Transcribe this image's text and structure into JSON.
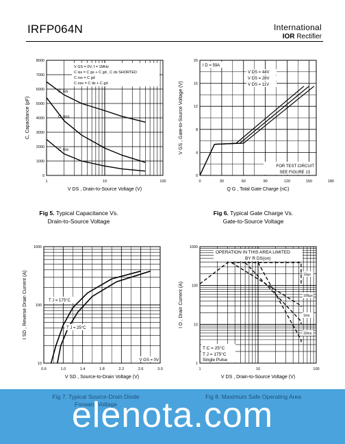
{
  "header": {
    "title": "IRFP064N",
    "brand_line1": "International",
    "brand_logo": "IOR",
    "brand_line2": "Rectifier"
  },
  "figures": [
    {
      "label": "Fig 5.",
      "caption_line1": "Typical Capacitance Vs.",
      "caption_line2": "Drain-to-Source Voltage"
    },
    {
      "label": "Fig 6.",
      "caption_line1": "Typical Gate Charge Vs.",
      "caption_line2": "Gate-to-Source Voltage"
    },
    {
      "label": "Fig 7.",
      "caption_line1": "Typical Source-Drain Diode",
      "caption_line2": "Forward Voltage"
    },
    {
      "label": "Fig 8.",
      "caption_line1": "Maximum Safe Operating Area",
      "caption_line2": ""
    }
  ],
  "chart_data": [
    {
      "type": "line",
      "xlabel": "V DS , Drain-to-Source Voltage (V)",
      "ylabel": "C, Capacitance (pF)",
      "x_scale": "log",
      "xlim": [
        1,
        100
      ],
      "ylim": [
        0,
        8000
      ],
      "x_ticks": [
        "1",
        "10",
        "100"
      ],
      "y_ticks": [
        "0",
        "1000",
        "2000",
        "3000",
        "4000",
        "5000",
        "6000",
        "7000",
        "8000"
      ],
      "annotations": [
        "V GS = 0V,       f = 1MHz",
        "C iss = C gs + C gd ,  C ds SHORTED",
        "C rss = C gd",
        "C oss = C ds + C gd"
      ],
      "series": [
        {
          "name": "C iss",
          "x": [
            1,
            2,
            4,
            10,
            20,
            50
          ],
          "y": [
            6500,
            5600,
            5000,
            4500,
            4100,
            3700
          ]
        },
        {
          "name": "C oss",
          "x": [
            1,
            2,
            4,
            10,
            20,
            50
          ],
          "y": [
            5400,
            3800,
            2800,
            1900,
            1400,
            900
          ]
        },
        {
          "name": "C rss",
          "x": [
            1,
            2,
            4,
            10,
            20,
            50
          ],
          "y": [
            2500,
            1500,
            1000,
            650,
            450,
            300
          ]
        }
      ]
    },
    {
      "type": "line",
      "xlabel": "Q G , Total Gate Charge (nC)",
      "ylabel": "V GS , Gate-to-Source Voltage (V)",
      "xlim": [
        0,
        160
      ],
      "ylim": [
        0,
        20
      ],
      "x_ticks": [
        "0",
        "30",
        "60",
        "90",
        "120",
        "150",
        "180"
      ],
      "x_tick_values": [
        0,
        30,
        60,
        90,
        120,
        150,
        180
      ],
      "y_ticks": [
        "0",
        "4",
        "8",
        "12",
        "16",
        "20"
      ],
      "annotations": [
        "I D = 59A",
        "FOR TEST CIRCUIT",
        "SEE FIGURE 13"
      ],
      "series": [
        {
          "name": "V DS = 44V",
          "x": [
            0,
            20,
            60,
            157
          ],
          "y": [
            0,
            5.4,
            5.6,
            15.5
          ]
        },
        {
          "name": "V DS = 28V",
          "x": [
            0,
            20,
            55,
            150
          ],
          "y": [
            0,
            5.4,
            5.6,
            15.5
          ]
        },
        {
          "name": "V DS = 11V",
          "x": [
            0,
            20,
            50,
            143
          ],
          "y": [
            0,
            5.4,
            5.6,
            15.5
          ]
        }
      ]
    },
    {
      "type": "line",
      "xlabel": "V SD , Source-to-Drain Voltage (V)",
      "ylabel": "I SD , Reverse Drain Current (A)",
      "y_scale": "log",
      "xlim": [
        0.6,
        3.0
      ],
      "ylim": [
        10,
        1000
      ],
      "x_ticks": [
        "0.6",
        "1.0",
        "1.4",
        "1.8",
        "2.2",
        "2.6",
        "3.0"
      ],
      "y_ticks": [
        "10",
        "100",
        "1000"
      ],
      "annotations": [
        "V GS = 0V"
      ],
      "series": [
        {
          "name": "T J = 175°C",
          "x": [
            0.75,
            0.85,
            1.0,
            1.2,
            1.5,
            2.0,
            2.6
          ],
          "y": [
            10,
            20,
            45,
            90,
            160,
            280,
            380
          ]
        },
        {
          "name": "T J = 25°C",
          "x": [
            0.88,
            0.95,
            1.1,
            1.3,
            1.6,
            2.1,
            2.8
          ],
          "y": [
            10,
            20,
            40,
            75,
            140,
            250,
            380
          ]
        }
      ]
    },
    {
      "type": "line",
      "xlabel": "V DS , Drain-to-Source Voltage (V)",
      "ylabel": "I D , Drain Current (A)",
      "x_scale": "log",
      "y_scale": "log",
      "xlim": [
        1,
        100
      ],
      "ylim": [
        1,
        1000
      ],
      "x_ticks": [
        "1",
        "10",
        "100"
      ],
      "y_ticks": [
        "1",
        "10",
        "100",
        "1000"
      ],
      "annotations": [
        "OPERATION IN THIS AREA LIMITED",
        "BY R DS(on)",
        "T C = 25°C",
        "T J = 175°C",
        "Single Pulse"
      ],
      "series": [
        {
          "name": "10µs",
          "x": [
            1,
            3,
            55,
            55
          ],
          "y": [
            110,
            390,
            390,
            100
          ]
        },
        {
          "name": "100µs",
          "x": [
            3.5,
            55,
            55
          ],
          "y": [
            390,
            30,
            28
          ]
        },
        {
          "name": "1ms",
          "x": [
            6,
            55,
            55
          ],
          "y": [
            390,
            12,
            10
          ]
        },
        {
          "name": "10ms",
          "x": [
            10,
            55,
            55
          ],
          "y": [
            390,
            4,
            3.5
          ]
        }
      ]
    }
  ],
  "footer": {
    "watermark": "elenota.com",
    "caption_left": "Fig 7.  Typical Source-Drain Diode",
    "caption_left2": "Forward Voltage",
    "caption_right": "Fig 8.  Maximum Safe Operating Area"
  }
}
